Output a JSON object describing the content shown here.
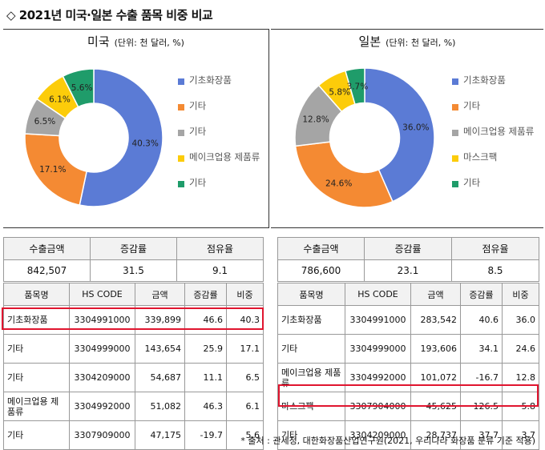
{
  "title": "◇ 2021년 미국·일본 수출 품목 비중 비교",
  "unit_note": "(단위: 천 달러, %)",
  "source": "* 출처 : 관세청, 대한화장품산업연구원(2021, 우리나라 화장품 분류 기준 적용)",
  "summary_headers": [
    "수출금액",
    "증감률",
    "점유율"
  ],
  "item_headers": [
    "품목명",
    "HS CODE",
    "금액",
    "증감률",
    "비중"
  ],
  "chart_data": [
    {
      "type": "pie",
      "title": "미국",
      "categories": [
        "기초화장품",
        "기타",
        "기타",
        "메이크업용 제품류",
        "기타"
      ],
      "values": [
        40.3,
        17.1,
        6.5,
        6.1,
        5.6
      ],
      "labels": [
        "40.3%",
        "17.1%",
        "6.5%",
        "6.1%",
        "5.6%"
      ],
      "colors": [
        "#5b7bd5",
        "#f48a33",
        "#a5a5a5",
        "#fccc0a",
        "#1f9c6a"
      ],
      "hole": 0.5,
      "legend": "right"
    },
    {
      "type": "pie",
      "title": "일본",
      "categories": [
        "기초화장품",
        "기타",
        "메이크업용 제품류",
        "마스크팩",
        "기타"
      ],
      "values": [
        36.0,
        24.6,
        12.8,
        5.8,
        3.7
      ],
      "labels": [
        "36.0%",
        "24.6%",
        "12.8%",
        "5.8%",
        "3.7%"
      ],
      "colors": [
        "#5b7bd5",
        "#f48a33",
        "#a5a5a5",
        "#fccc0a",
        "#1f9c6a"
      ],
      "hole": 0.5,
      "legend": "right"
    }
  ],
  "us": {
    "summary": [
      "842,507",
      "31.5",
      "9.1"
    ],
    "rows": [
      [
        "기초화장품",
        "3304991000",
        "339,899",
        "46.6",
        "40.3"
      ],
      [
        "기타",
        "3304999000",
        "143,654",
        "25.9",
        "17.1"
      ],
      [
        "기타",
        "3304209000",
        "54,687",
        "11.1",
        "6.5"
      ],
      [
        "메이크업용 제품류",
        "3304992000",
        "51,082",
        "46.3",
        "6.1"
      ],
      [
        "기타",
        "3307909000",
        "47,175",
        "-19.7",
        "5.6"
      ]
    ]
  },
  "jp": {
    "summary": [
      "786,600",
      "23.1",
      "8.5"
    ],
    "rows": [
      [
        "기초화장품",
        "3304991000",
        "283,542",
        "40.6",
        "36.0"
      ],
      [
        "기타",
        "3304999000",
        "193,606",
        "34.1",
        "24.6"
      ],
      [
        "메이크업용 제품류",
        "3304992000",
        "101,072",
        "-16.7",
        "12.8"
      ],
      [
        "마스크팩",
        "3307904000",
        "45,625",
        "126.5",
        "5.8"
      ],
      [
        "기타",
        "3304209000",
        "28,737",
        "37.7",
        "3.7"
      ]
    ]
  }
}
